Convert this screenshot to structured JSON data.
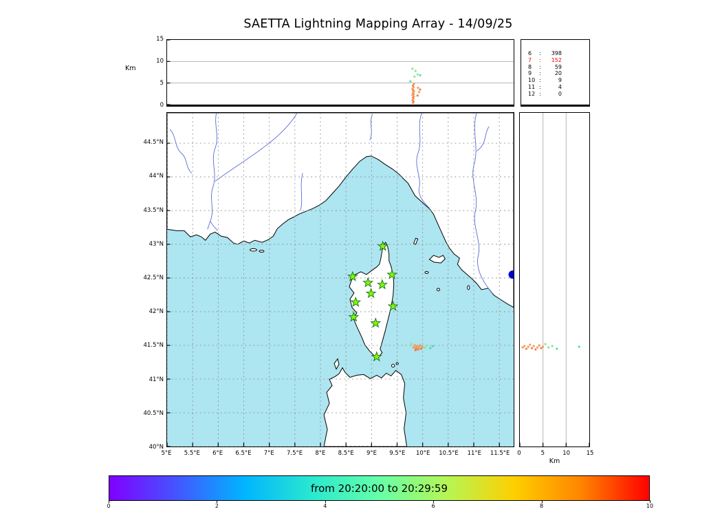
{
  "title": "SAETTA Lightning Mapping Array - 14/09/25",
  "panels": {
    "alt_lon": {
      "ylabel": "Km",
      "yticks": [
        0,
        5,
        10,
        15
      ],
      "ymax": 15
    },
    "alt_lat": {
      "xlabel": "Km",
      "xticks": [
        0,
        5,
        10,
        15
      ],
      "xmax": 15
    },
    "map": {
      "lon_ticks": [
        5,
        5.5,
        6,
        6.5,
        7,
        7.5,
        8,
        8.5,
        9,
        9.5,
        10,
        10.5,
        11,
        11.5
      ],
      "lon_tick_labels": [
        "5°E",
        "5.5°E",
        "6°E",
        "6.5°E",
        "7°E",
        "7.5°E",
        "8°E",
        "8.5°E",
        "9°E",
        "9.5°E",
        "10°E",
        "10.5°E",
        "11°E",
        "11.5°E"
      ],
      "lat_ticks": [
        40,
        40.5,
        41,
        41.5,
        42,
        42.5,
        43,
        43.5,
        44,
        44.5
      ],
      "lat_tick_labels": [
        "40°N",
        "40.5°N",
        "41°N",
        "41.5°N",
        "42°N",
        "42.5°N",
        "43°N",
        "43.5°N",
        "44°N",
        "44.5°N"
      ],
      "lon_range": [
        5,
        11.78
      ],
      "lat_range": [
        40,
        44.95
      ]
    }
  },
  "station_counts": [
    {
      "station": "6",
      "count": "398",
      "highlight": false
    },
    {
      "station": "7",
      "count": "152",
      "highlight": true
    },
    {
      "station": "8",
      "count": "59",
      "highlight": false
    },
    {
      "station": "9",
      "count": "20",
      "highlight": false
    },
    {
      "station": "10",
      "count": "9",
      "highlight": false
    },
    {
      "station": "11",
      "count": "4",
      "highlight": false
    },
    {
      "station": "12",
      "count": "0",
      "highlight": false
    }
  ],
  "colorbar": {
    "label": "from 20:20:00 to 20:29:59",
    "ticks": [
      0,
      2,
      4,
      6,
      8,
      10
    ],
    "vmin": 0,
    "vmax": 10,
    "gradient": [
      "#8000ff",
      "#4455ff",
      "#00b5ff",
      "#2ae8cf",
      "#66ffa8",
      "#b4f655",
      "#ffcf00",
      "#ff8400",
      "#ff0000"
    ]
  },
  "colors": {
    "sea": "#ade5f0",
    "land": "#ffffff",
    "coast": "#000000",
    "river": "#5b6bd5",
    "grid": "#8a8a8a",
    "panel_grid": "#b4b4b4",
    "star_fill": "#7cfc00",
    "star_edge": "#1b6b1b",
    "highlight_count": "#ff0000",
    "blue_marker": "#0000cc",
    "point_palette": {
      "o1": "#f79a56",
      "o2": "#ef7f45",
      "g": "#86e88e",
      "c": "#55d8b8"
    }
  },
  "chart_data": {
    "type": "scatter",
    "title": "SAETTA Lightning Mapping Array - 14/09/25",
    "time_window": {
      "from": "20:20:00",
      "to": "20:29:59"
    },
    "colorbar_ticks": [
      0,
      2,
      4,
      6,
      8,
      10
    ],
    "station_histogram": {
      "stations": [
        6,
        7,
        8,
        9,
        10,
        11,
        12
      ],
      "counts": [
        398,
        152,
        59,
        20,
        9,
        4,
        0
      ],
      "highlighted_station": 7
    },
    "lma_stations_lonlat": [
      [
        9.22,
        42.97
      ],
      [
        8.63,
        42.52
      ],
      [
        8.93,
        42.43
      ],
      [
        9.21,
        42.4
      ],
      [
        9.4,
        42.55
      ],
      [
        8.99,
        42.27
      ],
      [
        8.69,
        42.14
      ],
      [
        9.42,
        42.08
      ],
      [
        8.65,
        41.92
      ],
      [
        9.08,
        41.83
      ],
      [
        9.1,
        41.33
      ]
    ],
    "blue_marker_lonlat": [
      11.76,
      42.55
    ],
    "alt_lon_points": [
      [
        9.81,
        0.4,
        "o1"
      ],
      [
        9.82,
        0.7,
        "o2"
      ],
      [
        9.8,
        1.0,
        "o1"
      ],
      [
        9.82,
        1.3,
        "o1"
      ],
      [
        9.81,
        1.6,
        "o2"
      ],
      [
        9.83,
        1.9,
        "o1"
      ],
      [
        9.8,
        2.2,
        "o1"
      ],
      [
        9.82,
        2.5,
        "o2"
      ],
      [
        9.81,
        2.8,
        "o1"
      ],
      [
        9.83,
        3.1,
        "o1"
      ],
      [
        9.81,
        3.4,
        "o2"
      ],
      [
        9.8,
        3.7,
        "o1"
      ],
      [
        9.82,
        4.0,
        "o1"
      ],
      [
        9.81,
        4.4,
        "o2"
      ],
      [
        9.83,
        4.8,
        "o1"
      ],
      [
        9.9,
        2.1,
        "o2"
      ],
      [
        9.93,
        2.9,
        "o1"
      ],
      [
        9.95,
        3.5,
        "o2"
      ],
      [
        9.91,
        3.9,
        "o1"
      ],
      [
        9.84,
        6.5,
        "g"
      ],
      [
        9.9,
        7.0,
        "g"
      ],
      [
        9.86,
        7.8,
        "g"
      ],
      [
        9.95,
        6.8,
        "c"
      ],
      [
        9.8,
        8.3,
        "g"
      ],
      [
        9.76,
        5.4,
        "c"
      ]
    ],
    "map_points": [
      [
        9.82,
        41.47,
        "o1"
      ],
      [
        9.85,
        41.5,
        "o1"
      ],
      [
        9.87,
        41.46,
        "o2"
      ],
      [
        9.89,
        41.49,
        "o1"
      ],
      [
        9.91,
        41.44,
        "o2"
      ],
      [
        9.93,
        41.47,
        "o1"
      ],
      [
        9.95,
        41.5,
        "o1"
      ],
      [
        9.97,
        41.45,
        "o2"
      ],
      [
        9.99,
        41.48,
        "o1"
      ],
      [
        9.86,
        41.43,
        "o2"
      ],
      [
        10.04,
        41.47,
        "g"
      ],
      [
        10.08,
        41.5,
        "g"
      ],
      [
        9.78,
        41.52,
        "g"
      ],
      [
        10.15,
        41.46,
        "c"
      ],
      [
        10.2,
        41.49,
        "c"
      ]
    ],
    "alt_lat_points": [
      [
        0.6,
        41.47,
        "o1"
      ],
      [
        1.0,
        41.49,
        "o1"
      ],
      [
        1.4,
        41.45,
        "o2"
      ],
      [
        1.8,
        41.48,
        "o1"
      ],
      [
        2.2,
        41.51,
        "o1"
      ],
      [
        2.6,
        41.46,
        "o2"
      ],
      [
        3.0,
        41.49,
        "o1"
      ],
      [
        3.4,
        41.44,
        "o2"
      ],
      [
        3.8,
        41.47,
        "o1"
      ],
      [
        4.2,
        41.5,
        "o1"
      ],
      [
        4.6,
        41.46,
        "o2"
      ],
      [
        5.0,
        41.48,
        "o1"
      ],
      [
        5.5,
        41.52,
        "g"
      ],
      [
        6.2,
        41.47,
        "g"
      ],
      [
        7.0,
        41.49,
        "g"
      ],
      [
        8.0,
        41.45,
        "c"
      ],
      [
        12.8,
        41.48,
        "c"
      ]
    ]
  }
}
